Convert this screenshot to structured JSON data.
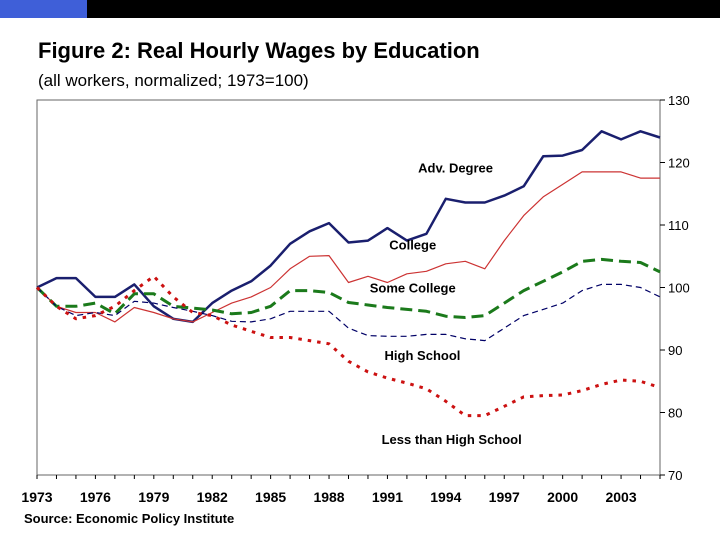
{
  "header": {
    "accent_color": "#3f5fd8"
  },
  "chart_data": {
    "type": "line",
    "title": "Figure 2:  Real Hourly Wages by Education",
    "subtitle": "(all workers, normalized; 1973=100)",
    "source": "Source: Economic Policy Institute",
    "x_tick_labels": [
      "1973",
      "1976",
      "1979",
      "1982",
      "1985",
      "1988",
      "1991",
      "1994",
      "1997",
      "2000",
      "2003"
    ],
    "x_ticks": [
      1973,
      1976,
      1979,
      1982,
      1985,
      1988,
      1991,
      1994,
      1997,
      2000,
      2003
    ],
    "xlim": [
      1973,
      2005
    ],
    "ylim": [
      70,
      130
    ],
    "y_ticks": [
      70,
      80,
      90,
      100,
      110,
      120,
      130
    ],
    "y_axis_position": "right",
    "grid": false,
    "x": [
      1973,
      1974,
      1975,
      1976,
      1977,
      1978,
      1979,
      1980,
      1981,
      1982,
      1983,
      1984,
      1985,
      1986,
      1987,
      1988,
      1989,
      1990,
      1991,
      1992,
      1993,
      1994,
      1995,
      1996,
      1997,
      1998,
      1999,
      2000,
      2001,
      2002,
      2003,
      2004,
      2005
    ],
    "series": [
      {
        "name": "Adv. Degree",
        "color": "#1a1f6e",
        "style": "solid",
        "width": 2.5,
        "label_pos": [
          1994.5,
          118.4
        ],
        "values": [
          100,
          101.5,
          101.5,
          98.5,
          98.5,
          100.5,
          97,
          95,
          94.5,
          97.5,
          99.5,
          101,
          103.5,
          107,
          109,
          110.3,
          107.2,
          107.5,
          109.5,
          107.5,
          108.6,
          114.2,
          113.6,
          113.6,
          114.7,
          116.2,
          121,
          121.1,
          122,
          125,
          123.7,
          125,
          124
        ]
      },
      {
        "name": "College",
        "color": "#cc3333",
        "style": "solid",
        "width": 1.2,
        "label_pos": [
          1992.3,
          106.1
        ],
        "values": [
          100,
          97,
          96,
          96,
          94.5,
          96.8,
          96,
          95,
          94.5,
          96,
          97.5,
          98.5,
          100,
          103,
          105,
          105.1,
          100.8,
          101.8,
          100.8,
          102.2,
          102.6,
          103.8,
          104.2,
          103,
          107.5,
          111.5,
          114.5,
          116.5,
          118.5,
          118.5,
          118.5,
          117.5,
          117.5
        ]
      },
      {
        "name": "Some College",
        "color": "#1b7a1b",
        "style": "longdash",
        "width": 3,
        "label_pos": [
          1992.3,
          99.2
        ],
        "values": [
          100,
          97,
          97,
          97.5,
          95.8,
          99,
          99,
          97,
          96.7,
          96.4,
          95.8,
          96,
          97,
          99.5,
          99.5,
          99.2,
          97.6,
          97.2,
          96.8,
          96.5,
          96.2,
          95.4,
          95.2,
          95.5,
          97.5,
          99.5,
          101,
          102.5,
          104.2,
          104.5,
          104.2,
          104,
          102.5
        ]
      },
      {
        "name": "High School",
        "color": "#000066",
        "style": "dash",
        "width": 1.2,
        "label_pos": [
          1992.8,
          88.4
        ],
        "values": [
          100,
          97,
          95.5,
          96,
          95.5,
          97.8,
          97.5,
          96.8,
          96.2,
          95.5,
          94.6,
          94.5,
          95,
          96.2,
          96.2,
          96.2,
          93.5,
          92.3,
          92.2,
          92.2,
          92.5,
          92.5,
          91.8,
          91.5,
          93.5,
          95.5,
          96.5,
          97.5,
          99.5,
          100.5,
          100.5,
          100,
          98.5
        ]
      },
      {
        "name": "Less than High School",
        "color": "#cc1111",
        "style": "dot",
        "width": 3,
        "label_pos": [
          1994.3,
          75
        ],
        "values": [
          100,
          97,
          95,
          95.5,
          97,
          99.5,
          101.8,
          98.5,
          96,
          95.5,
          94,
          93,
          92,
          92,
          91.5,
          91,
          88.2,
          86.5,
          85.5,
          84.7,
          83.8,
          81.8,
          79.5,
          79.5,
          81,
          82.5,
          82.7,
          82.8,
          83.5,
          84.5,
          85.2,
          85,
          84
        ]
      }
    ]
  }
}
